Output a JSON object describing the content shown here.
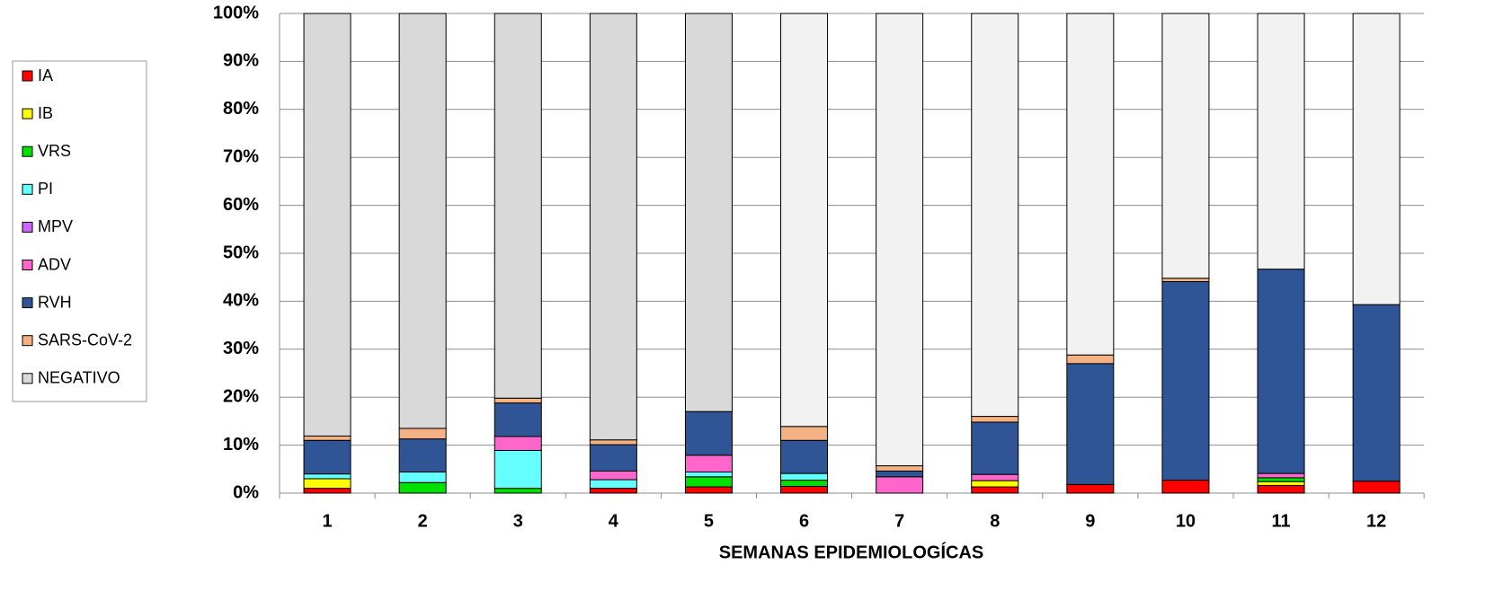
{
  "chart_data": {
    "type": "stacked_bar",
    "x_label": "SEMANAS EPIDEMIOLOGÍCAS",
    "categories": [
      "1",
      "2",
      "3",
      "4",
      "5",
      "6",
      "7",
      "8",
      "9",
      "10",
      "11",
      "12"
    ],
    "ylim": [
      0,
      100
    ],
    "yticks": [
      {
        "value": 0,
        "label": "0%"
      },
      {
        "value": 10,
        "label": "10%"
      },
      {
        "value": 20,
        "label": "20%"
      },
      {
        "value": 30,
        "label": "30%"
      },
      {
        "value": 40,
        "label": "40%"
      },
      {
        "value": 50,
        "label": "50%"
      },
      {
        "value": 60,
        "label": "60%"
      },
      {
        "value": 70,
        "label": "70%"
      },
      {
        "value": 80,
        "label": "80%"
      },
      {
        "value": 90,
        "label": "90%"
      },
      {
        "value": 100,
        "label": "100%"
      }
    ],
    "grid": true,
    "legend": "left",
    "series": [
      {
        "name": "IA",
        "color": "#ff0000",
        "values": [
          1,
          0,
          0,
          1,
          1.3,
          1.4,
          0,
          1.3,
          1.8,
          2.7,
          1.6,
          2.5
        ]
      },
      {
        "name": "IB",
        "color": "#ffff00",
        "values": [
          2,
          0,
          0,
          0,
          0,
          0,
          0,
          1.3,
          0,
          0,
          0.8,
          0
        ]
      },
      {
        "name": "VRS",
        "color": "#00e000",
        "values": [
          0,
          2.2,
          1,
          0,
          2.1,
          1.3,
          0,
          0,
          0,
          0,
          0.8,
          0
        ]
      },
      {
        "name": "PI",
        "color": "#66ffff",
        "values": [
          1,
          2.2,
          7.9,
          1.8,
          1,
          1.4,
          0,
          0,
          0,
          0,
          0,
          0
        ]
      },
      {
        "name": "MPV",
        "color": "#cc66ff",
        "values": [
          0,
          0,
          0,
          0,
          0,
          0,
          0,
          0,
          0,
          0,
          0,
          0
        ]
      },
      {
        "name": "ADV",
        "color": "#ff66cc",
        "values": [
          0,
          0,
          2.9,
          1.8,
          3.5,
          0,
          3.4,
          1.3,
          0,
          0,
          0.9,
          0
        ]
      },
      {
        "name": "RVH",
        "color": "#2f5597",
        "values": [
          7,
          6.9,
          7,
          5.5,
          9.1,
          6.9,
          1.2,
          10.9,
          25.2,
          41.4,
          42.6,
          36.8
        ]
      },
      {
        "name": "SARS-CoV-2",
        "color": "#f4b183",
        "values": [
          0.9,
          2.2,
          1,
          1,
          0,
          2.9,
          1.1,
          1.2,
          1.8,
          0.7,
          0,
          0
        ]
      },
      {
        "name": "NEGATIVO",
        "color": "#d9d9d9",
        "values": [
          88.1,
          86.5,
          80.2,
          88.9,
          83,
          86.1,
          94.3,
          84,
          71.2,
          55.2,
          53.3,
          60.7
        ],
        "colors": [
          "#d9d9d9",
          "#d9d9d9",
          "#d9d9d9",
          "#d9d9d9",
          "#d9d9d9",
          "#f2f2f2",
          "#f2f2f2",
          "#f2f2f2",
          "#f2f2f2",
          "#f2f2f2",
          "#f2f2f2",
          "#f2f2f2"
        ]
      }
    ]
  }
}
